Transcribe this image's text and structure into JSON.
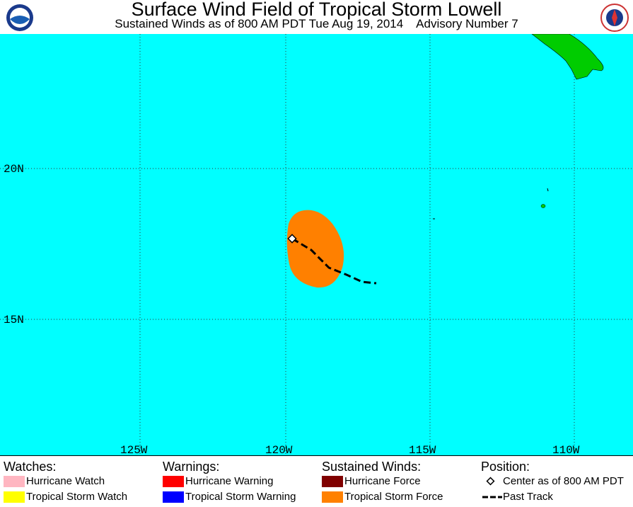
{
  "header": {
    "title": "Surface Wind Field of Tropical Storm Lowell",
    "subtitle": "Sustained Winds as of 800 AM PDT Tue Aug 19, 2014    Advisory Number 7"
  },
  "map": {
    "latitude_labels": [
      "20N",
      "15N"
    ],
    "longitude_labels": [
      "125W",
      "120W",
      "115W",
      "110W"
    ]
  },
  "legend": {
    "groups": [
      {
        "heading": "Watches:",
        "items": [
          "Hurricane Watch",
          "Tropical Storm Watch"
        ]
      },
      {
        "heading": "Warnings:",
        "items": [
          "Hurricane Warning",
          "Tropical Storm Warning"
        ]
      },
      {
        "heading": "Sustained Winds:",
        "items": [
          "Hurricane Force",
          "Tropical Storm Force"
        ]
      },
      {
        "heading": "Position:",
        "items": [
          "Center as of 800 AM PDT",
          "Past Track"
        ]
      }
    ]
  }
}
